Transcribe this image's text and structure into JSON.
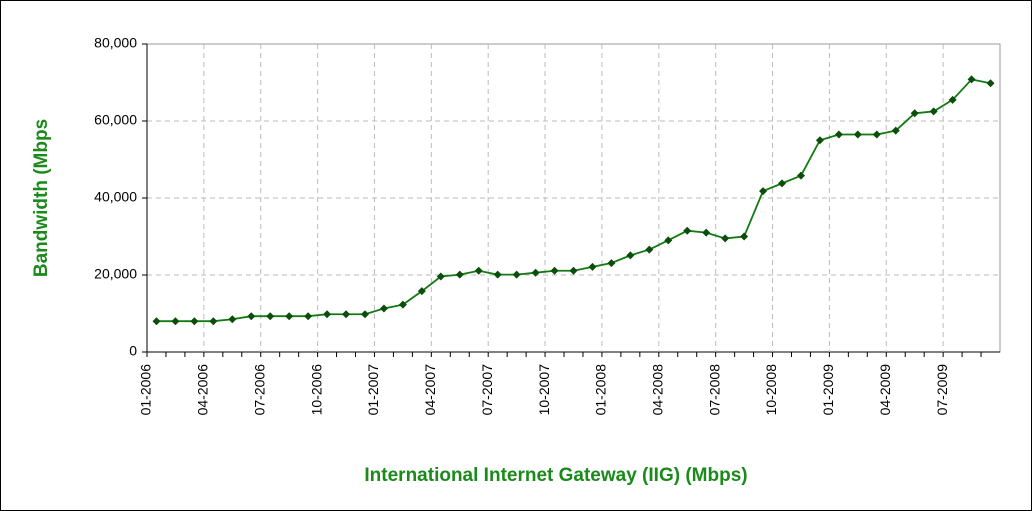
{
  "chart_data": {
    "type": "line",
    "x_label": "International Internet Gateway (IIG) (Mbps)",
    "y_label": "Bandwidth (Mbps",
    "categories": [
      "01-2006",
      null,
      null,
      "04-2006",
      null,
      null,
      "07-2006",
      null,
      null,
      "10-2006",
      null,
      null,
      "01-2007",
      null,
      null,
      "04-2007",
      null,
      null,
      "07-2007",
      null,
      null,
      "10-2007",
      null,
      null,
      "01-2008",
      null,
      null,
      "04-2008",
      null,
      null,
      "07-2008",
      null,
      null,
      "10-2008",
      null,
      null,
      "01-2009",
      null,
      null,
      "04-2009",
      null,
      null,
      "07-2009",
      null,
      null
    ],
    "values": [
      8000,
      8000,
      8000,
      8000,
      8500,
      9300,
      9300,
      9300,
      9300,
      9800,
      9800,
      9800,
      11300,
      12300,
      15800,
      19600,
      20100,
      21100,
      20100,
      20100,
      20600,
      21100,
      21100,
      22100,
      23100,
      25100,
      26600,
      29000,
      31500,
      31000,
      29500,
      30000,
      41800,
      43800,
      45800,
      55000,
      56500,
      56500,
      56500,
      57500,
      62000,
      62500,
      65500,
      70800,
      69800
    ],
    "color": "#117a11",
    "ylim": [
      0,
      80000
    ],
    "yticks": [
      0,
      {
        "value": 20000,
        "label": "20,000"
      },
      {
        "value": 40000,
        "label": "40,000"
      },
      {
        "value": 60000,
        "label": "60,000"
      },
      {
        "value": 80000,
        "label": "80,000"
      }
    ],
    "grid": true
  }
}
